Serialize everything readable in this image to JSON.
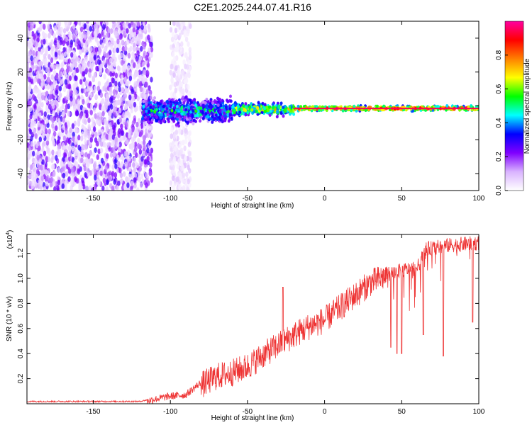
{
  "title": "C2E1.2025.244.07.41.R16",
  "chart_data": [
    {
      "type": "heatmap",
      "name": "spectrogram",
      "xlabel": "Height of straight line (km)",
      "ylabel": "Frequency (Hz)",
      "xlim": [
        -193,
        100
      ],
      "ylim": [
        -50,
        50
      ],
      "xticks": [
        -150,
        -100,
        -50,
        0,
        50,
        100
      ],
      "xtick_labels": [
        "-150",
        "-100",
        "-50",
        "0",
        "50",
        "100"
      ],
      "yticks": [
        -40,
        -20,
        0,
        20,
        40
      ],
      "ytick_labels": [
        "-40",
        "-20",
        "0",
        "20",
        "40"
      ],
      "colorbar": {
        "label": "Normalized spectral amplitude",
        "range": [
          0,
          1
        ],
        "ticks": [
          0.0,
          0.2,
          0.4,
          0.6,
          0.8
        ],
        "tick_labels": [
          "0.0",
          "0.2",
          "0.4",
          "0.6",
          "0.8"
        ],
        "colors": [
          "#ffffff",
          "#d9b3ff",
          "#8000ff",
          "#0000ff",
          "#00ffff",
          "#00ff00",
          "#ffff00",
          "#ff8000",
          "#ff0000",
          "#ff00a0"
        ]
      },
      "regions": [
        {
          "x": [
            -193,
            -112
          ],
          "freq_center": 0,
          "freq_halfwidth": 50,
          "amplitude": [
            0.05,
            0.3
          ],
          "desc": "broadband noise"
        },
        {
          "x": [
            -100,
            -87
          ],
          "freq_center": 0,
          "freq_halfwidth": 50,
          "amplitude": [
            0.02,
            0.1
          ],
          "desc": "faint noise strip"
        },
        {
          "x": [
            -118,
            -60
          ],
          "freq_center": -3,
          "freq_halfwidth": 10,
          "amplitude": [
            0.2,
            0.6
          ]
        },
        {
          "x": [
            -60,
            -20
          ],
          "freq_center": -2,
          "freq_halfwidth": 5,
          "amplitude": [
            0.4,
            0.8
          ]
        },
        {
          "x": [
            -20,
            100
          ],
          "freq_center": -1.5,
          "freq_halfwidth": 2,
          "amplitude": [
            0.6,
            1.0
          ]
        }
      ]
    },
    {
      "type": "line",
      "name": "snr",
      "xlabel": "Height of straight line (km)",
      "ylabel": "SNR (10 * v/v)",
      "yscale_label": "(x10",
      "yscale_exp": "4",
      "yscale_close": ")",
      "xlim": [
        -193,
        100
      ],
      "ylim": [
        0,
        1.35
      ],
      "xticks": [
        -150,
        -100,
        -50,
        0,
        50,
        100
      ],
      "xtick_labels": [
        "-150",
        "-100",
        "-50",
        "0",
        "50",
        "100"
      ],
      "yticks": [
        0.2,
        0.4,
        0.6,
        0.8,
        1.0,
        1.2
      ],
      "ytick_labels": [
        "0.2",
        "0.4",
        "0.6",
        "0.8",
        "1.0",
        "1.2"
      ],
      "color": "#ee3333",
      "envelope": {
        "x": [
          -193,
          -120,
          -112,
          -100,
          -90,
          -80,
          -70,
          -60,
          -50,
          -40,
          -30,
          -20,
          -10,
          0,
          10,
          20,
          30,
          40,
          50,
          60,
          66,
          80,
          100
        ],
        "y": [
          0.02,
          0.02,
          0.04,
          0.07,
          0.08,
          0.18,
          0.25,
          0.28,
          0.33,
          0.42,
          0.5,
          0.58,
          0.65,
          0.7,
          0.8,
          0.9,
          1.0,
          1.05,
          1.08,
          1.1,
          1.25,
          1.28,
          1.3
        ]
      },
      "notable_dips": [
        {
          "x": 43,
          "y": 0.45
        },
        {
          "x": 47,
          "y": 0.4
        },
        {
          "x": 50,
          "y": 0.4
        },
        {
          "x": 64,
          "y": 0.55
        },
        {
          "x": 77,
          "y": 0.38
        },
        {
          "x": 96,
          "y": 0.65
        }
      ],
      "notable_spikes": [
        {
          "x": -27,
          "y": 0.93
        }
      ]
    }
  ]
}
